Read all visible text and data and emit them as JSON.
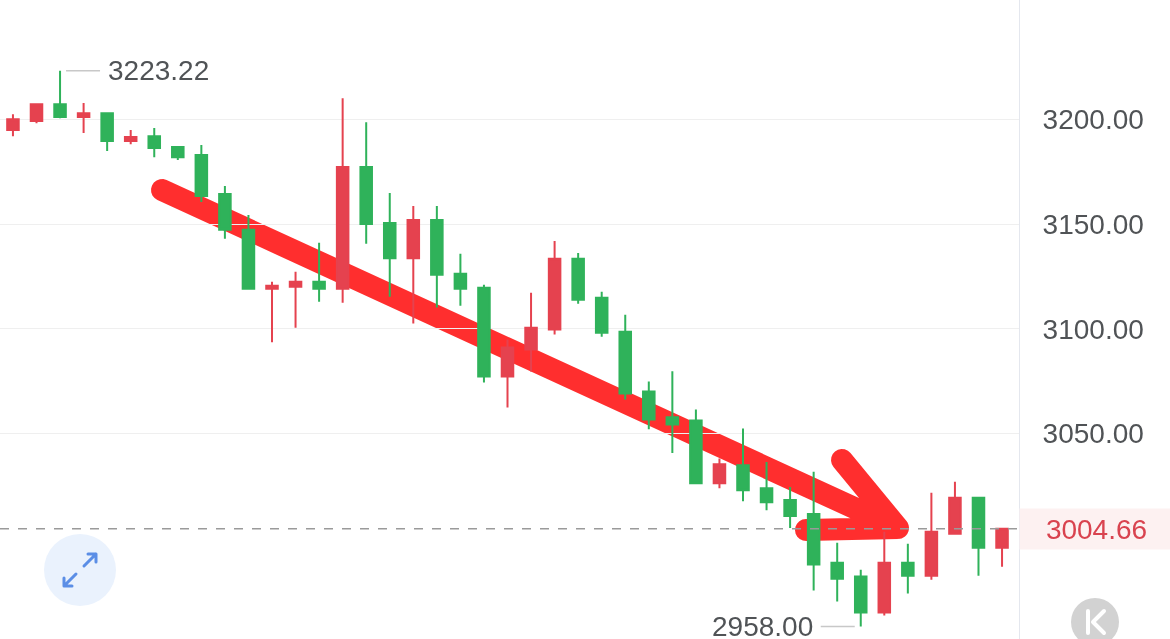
{
  "chart_data": {
    "type": "candlestick",
    "categories": [
      null,
      null,
      null,
      null,
      null,
      null,
      null,
      null,
      null,
      null,
      null,
      null,
      null,
      null,
      null,
      null,
      null,
      null,
      null,
      null,
      null,
      null,
      null,
      null,
      null,
      null,
      null,
      null,
      null,
      null,
      null,
      null,
      null,
      null,
      null,
      null,
      null,
      null,
      null,
      null,
      null,
      null,
      null
    ],
    "ohlc": [
      [
        3194.9,
        3202.5,
        3192.0,
        3200.1
      ],
      [
        3199.2,
        3207.3,
        3198.2,
        3207.3
      ],
      [
        3207.3,
        3223.22,
        3200.5,
        3201.1
      ],
      [
        3201.1,
        3207.8,
        3193.5,
        3203.0
      ],
      [
        3203.0,
        3203.0,
        3184.9,
        3189.7
      ],
      [
        3189.7,
        3194.9,
        3188.2,
        3191.6
      ],
      [
        3192.0,
        3195.9,
        3182.0,
        3186.3
      ],
      [
        3186.8,
        3187.3,
        3180.6,
        3182.0
      ],
      [
        3183.0,
        3187.8,
        3160.6,
        3163.5
      ],
      [
        3164.4,
        3168.2,
        3143.0,
        3147.3
      ],
      [
        3147.3,
        3154.4,
        3118.7,
        3119.2
      ],
      [
        3119.2,
        3122.5,
        3093.7,
        3120.6
      ],
      [
        3120.1,
        3127.3,
        3100.6,
        3122.5
      ],
      [
        3122.5,
        3141.1,
        3113.0,
        3119.2
      ],
      [
        3119.2,
        3210.1,
        3112.5,
        3177.3
      ],
      [
        3177.3,
        3198.7,
        3140.6,
        3150.1
      ],
      [
        3150.6,
        3164.9,
        3115.4,
        3133.7
      ],
      [
        3133.7,
        3158.7,
        3102.6,
        3152.0
      ],
      [
        3152.0,
        3158.7,
        3110.2,
        3125.9
      ],
      [
        3126.3,
        3135.9,
        3111.1,
        3119.2
      ],
      [
        3119.7,
        3121.1,
        3074.4,
        3077.3
      ],
      [
        3077.3,
        3094.9,
        3062.5,
        3091.1
      ],
      [
        3090.2,
        3117.3,
        3079.7,
        3100.6
      ],
      [
        3099.7,
        3142.0,
        3097.3,
        3133.5
      ],
      [
        3133.5,
        3136.2,
        3112.0,
        3113.9
      ],
      [
        3114.9,
        3117.8,
        3096.3,
        3098.2
      ],
      [
        3098.7,
        3106.8,
        3066.3,
        3069.2
      ],
      [
        3070.1,
        3074.9,
        3052.1,
        3056.8
      ],
      [
        3057.8,
        3079.8,
        3040.8,
        3054.4
      ],
      [
        3056.3,
        3061.6,
        3025.9,
        3026.3
      ],
      [
        3026.3,
        3038.2,
        3024.0,
        3035.4
      ],
      [
        3034.9,
        3052.5,
        3017.7,
        3023.0
      ],
      [
        3024.0,
        3036.5,
        3013.5,
        3017.3
      ],
      [
        3018.3,
        3024.5,
        3005.0,
        3010.7
      ],
      [
        3011.7,
        3031.8,
        2975.2,
        2987.5
      ],
      [
        2988.4,
        2997.9,
        2969.9,
        2980.8
      ],
      [
        2981.8,
        2985.1,
        2958.0,
        2964.6
      ],
      [
        2964.6,
        3003.2,
        2963.2,
        2988.4
      ],
      [
        2988.4,
        2997.5,
        2973.7,
        2982.2
      ],
      [
        2982.2,
        3021.8,
        2980.3,
        3003.2
      ],
      [
        3002.2,
        3027.0,
        3001.8,
        3019.4
      ],
      [
        3019.4,
        3019.4,
        2982.2,
        2995.6
      ],
      [
        2995.6,
        3004.66,
        2986.5,
        3004.66
      ]
    ],
    "colors": [
      "#e5424f",
      "#e5424f",
      "#2fb25a",
      "#e5424f",
      "#2fb25a",
      "#e5424f",
      "#2fb25a",
      "#2fb25a",
      "#2fb25a",
      "#2fb25a",
      "#2fb25a",
      "#e5424f",
      "#e5424f",
      "#2fb25a",
      "#e5424f",
      "#2fb25a",
      "#2fb25a",
      "#e5424f",
      "#2fb25a",
      "#2fb25a",
      "#2fb25a",
      "#e5424f",
      "#e5424f",
      "#e5424f",
      "#2fb25a",
      "#2fb25a",
      "#2fb25a",
      "#2fb25a",
      "#2fb25a",
      "#2fb25a",
      "#e5424f",
      "#2fb25a",
      "#2fb25a",
      "#2fb25a",
      "#2fb25a",
      "#2fb25a",
      "#2fb25a",
      "#e5424f",
      "#2fb25a",
      "#e5424f",
      "#e5424f",
      "#2fb25a",
      "#e5424f"
    ],
    "ylim": [
      2952,
      3257
    ],
    "yticks": [
      {
        "value": 3050,
        "label": "3050.00"
      },
      {
        "value": 3100,
        "label": "3100.00"
      },
      {
        "value": 3150,
        "label": "3150.00"
      },
      {
        "value": 3200,
        "label": "3200.00"
      }
    ],
    "grid": "y",
    "annotations": [
      "3223.22",
      "2958.00"
    ],
    "ref_lines": [
      {
        "axis": "y",
        "value": 3004.66,
        "label": "3004.66",
        "color": "#9a9a9a",
        "line_style": "dashed"
      }
    ]
  }
}
